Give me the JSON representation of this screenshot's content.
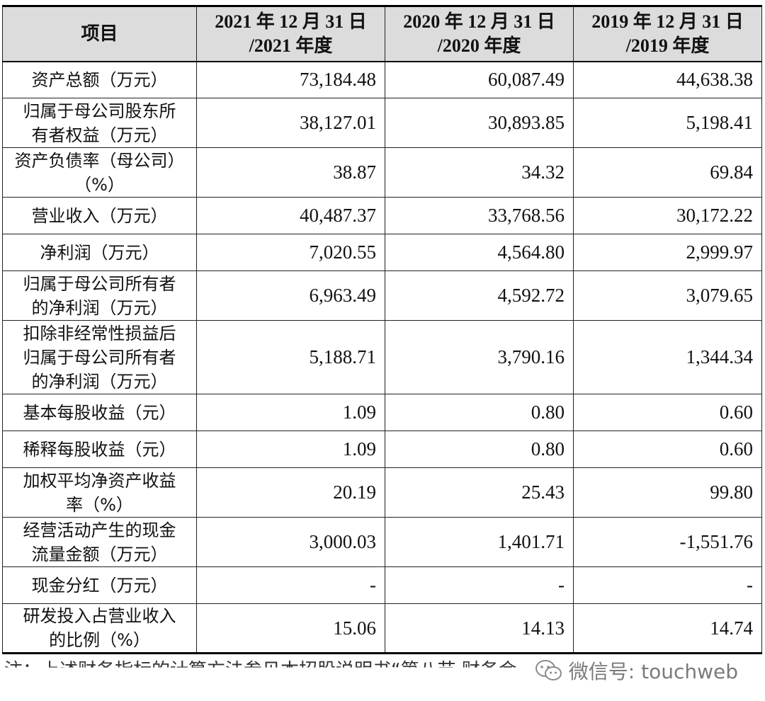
{
  "header": {
    "item": "项目",
    "col2021_l1": "2021 年 12 月 31 日",
    "col2021_l2": "/2021 年度",
    "col2020_l1": "2020 年 12 月 31 日",
    "col2020_l2": "/2020 年度",
    "col2019_l1": "2019 年 12 月 31 日",
    "col2019_l2": "/2019 年度"
  },
  "rows": [
    {
      "label_l1": "资产总额（万元）",
      "label_l2": "",
      "label_l3": "",
      "v2021": "73,184.48",
      "v2020": "60,087.49",
      "v2019": "44,638.38"
    },
    {
      "label_l1": "归属于母公司股东所",
      "label_l2": "有者权益（万元）",
      "label_l3": "",
      "v2021": "38,127.01",
      "v2020": "30,893.85",
      "v2019": "5,198.41"
    },
    {
      "label_l1": "资产负债率（母公司）",
      "label_l2": "（%）",
      "label_l3": "",
      "v2021": "38.87",
      "v2020": "34.32",
      "v2019": "69.84"
    },
    {
      "label_l1": "营业收入（万元）",
      "label_l2": "",
      "label_l3": "",
      "v2021": "40,487.37",
      "v2020": "33,768.56",
      "v2019": "30,172.22"
    },
    {
      "label_l1": "净利润（万元）",
      "label_l2": "",
      "label_l3": "",
      "v2021": "7,020.55",
      "v2020": "4,564.80",
      "v2019": "2,999.97"
    },
    {
      "label_l1": "归属于母公司所有者",
      "label_l2": "的净利润（万元）",
      "label_l3": "",
      "v2021": "6,963.49",
      "v2020": "4,592.72",
      "v2019": "3,079.65"
    },
    {
      "label_l1": "扣除非经常性损益后",
      "label_l2": "归属于母公司所有者",
      "label_l3": "的净利润（万元）",
      "v2021": "5,188.71",
      "v2020": "3,790.16",
      "v2019": "1,344.34"
    },
    {
      "label_l1": "基本每股收益（元）",
      "label_l2": "",
      "label_l3": "",
      "v2021": "1.09",
      "v2020": "0.80",
      "v2019": "0.60"
    },
    {
      "label_l1": "稀释每股收益（元）",
      "label_l2": "",
      "label_l3": "",
      "v2021": "1.09",
      "v2020": "0.80",
      "v2019": "0.60"
    },
    {
      "label_l1": "加权平均净资产收益",
      "label_l2": "率（%）",
      "label_l3": "",
      "v2021": "20.19",
      "v2020": "25.43",
      "v2019": "99.80"
    },
    {
      "label_l1": "经营活动产生的现金",
      "label_l2": "流量金额（万元）",
      "label_l3": "",
      "v2021": "3,000.03",
      "v2020": "1,401.71",
      "v2019": "-1,551.76"
    },
    {
      "label_l1": "现金分红（万元）",
      "label_l2": "",
      "label_l3": "",
      "v2021": "-",
      "v2020": "-",
      "v2019": "-"
    },
    {
      "label_l1": "研发投入占营业收入",
      "label_l2": "的比例（%）",
      "label_l3": "",
      "v2021": "15.06",
      "v2020": "14.13",
      "v2019": "14.74"
    }
  ],
  "footer": {
    "note": "注：上述财务指标的计算方法参见本招股说明书“第八节 财务会",
    "watermark": "微信号: touchweb",
    "watermark_icon": "wechat-icon"
  }
}
